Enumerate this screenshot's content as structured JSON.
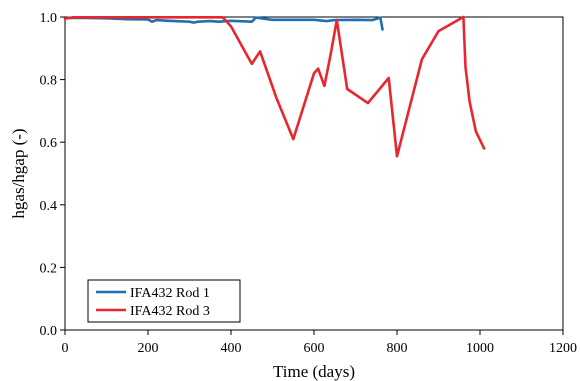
{
  "chart_data": {
    "type": "line",
    "title": "",
    "xlabel": "Time (days)",
    "ylabel": "hgas/hgap (-)",
    "xlim": [
      0,
      1200
    ],
    "ylim": [
      0.0,
      1.0
    ],
    "x_ticks": [
      "0",
      "200",
      "400",
      "600",
      "800",
      "1000",
      "1200"
    ],
    "y_ticks": [
      "0.0",
      "0.2",
      "0.4",
      "0.6",
      "0.8",
      "1.0"
    ],
    "grid": false,
    "legend_position": "bottom-left",
    "series": [
      {
        "name": "IFA432 Rod 1",
        "color": "#1f6fb4",
        "x": [
          0,
          10,
          50,
          100,
          150,
          200,
          210,
          220,
          250,
          300,
          310,
          320,
          350,
          370,
          400,
          450,
          460,
          500,
          550,
          600,
          630,
          650,
          700,
          740,
          760,
          765
        ],
        "y": [
          0.995,
          0.997,
          0.997,
          0.996,
          0.993,
          0.992,
          0.985,
          0.99,
          0.988,
          0.985,
          0.982,
          0.985,
          0.987,
          0.985,
          0.988,
          0.985,
          0.998,
          0.991,
          0.991,
          0.991,
          0.987,
          0.99,
          0.991,
          0.99,
          0.998,
          0.96
        ]
      },
      {
        "name": "IFA432 Rod 3",
        "color": "#e8262e",
        "x": [
          0,
          20,
          100,
          200,
          300,
          380,
          400,
          450,
          470,
          510,
          550,
          600,
          610,
          625,
          640,
          655,
          680,
          730,
          780,
          800,
          860,
          900,
          960,
          965,
          975,
          990,
          1010
        ],
        "y": [
          0.995,
          0.999,
          0.999,
          0.999,
          0.999,
          0.999,
          0.97,
          0.85,
          0.89,
          0.74,
          0.61,
          0.82,
          0.835,
          0.78,
          0.88,
          0.99,
          0.77,
          0.725,
          0.805,
          0.555,
          0.865,
          0.955,
          1.0,
          0.84,
          0.73,
          0.635,
          0.58
        ]
      }
    ]
  }
}
